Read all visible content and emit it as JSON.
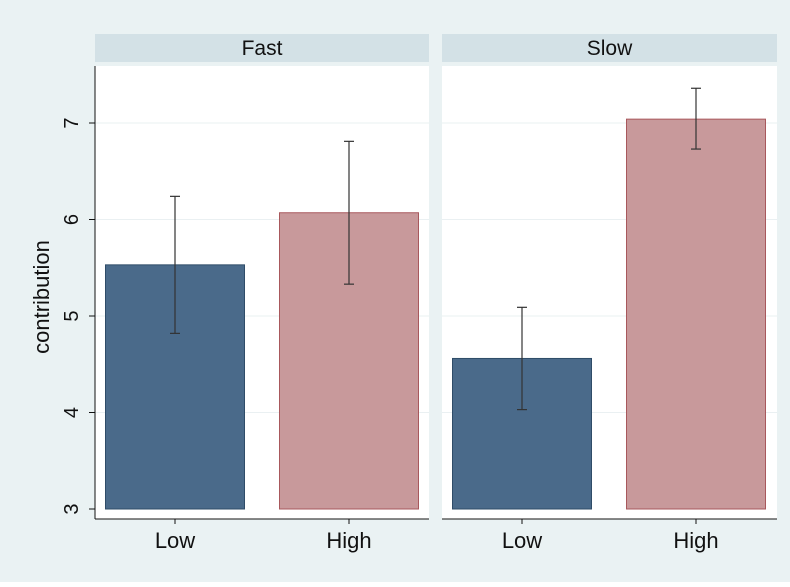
{
  "chart_data": {
    "type": "bar",
    "ylabel": "contribution",
    "ylim": [
      3,
      7.6
    ],
    "yticks": [
      3,
      4,
      5,
      6,
      7
    ],
    "categories": [
      "Low",
      "High"
    ],
    "category_colors": [
      "#4a6a8a",
      "#c8999b"
    ],
    "panels": [
      {
        "title": "Fast",
        "values": [
          5.53,
          6.07
        ],
        "error_low": [
          4.82,
          5.33
        ],
        "error_high": [
          6.24,
          6.81
        ]
      },
      {
        "title": "Slow",
        "values": [
          4.56,
          7.04
        ],
        "error_low": [
          4.03,
          6.73
        ],
        "error_high": [
          5.09,
          7.36
        ]
      }
    ],
    "grid": true,
    "background_color": "#eaf2f3",
    "strip_color": "#d3e1e6"
  }
}
